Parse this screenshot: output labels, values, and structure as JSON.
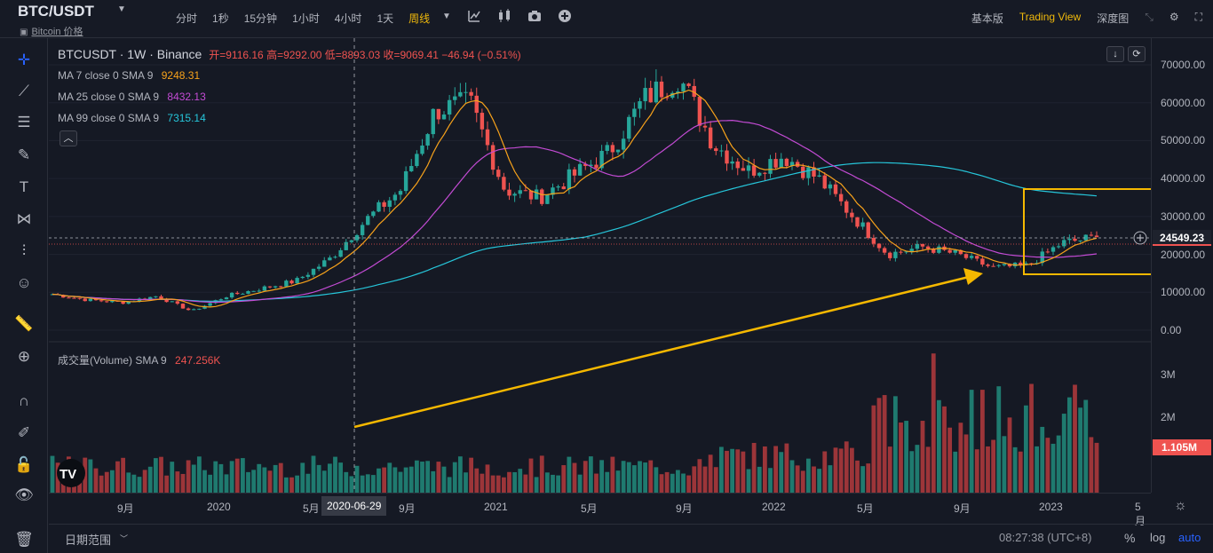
{
  "header": {
    "pair": "BTC/USDT",
    "sub_link": "Bitcoin 价格",
    "intervals": [
      "分时",
      "1秒",
      "15分钟",
      "1小时",
      "4小时",
      "1天",
      "周线"
    ],
    "active_interval": "周线",
    "views": [
      "基本版",
      "Trading View",
      "深度图"
    ],
    "active_view": "Trading View"
  },
  "legend": {
    "symbol": "BTCUSDT · 1W · Binance",
    "ohlc": "开=9116.16  高=9292.00  低=8893.03  收=9069.41  −46.94 (−0.51%)",
    "ma7_label": "MA 7 close 0 SMA 9",
    "ma7_value": "9248.31",
    "ma25_label": "MA 25 close 0 SMA 9",
    "ma25_value": "8432.13",
    "ma99_label": "MA 99 close 0 SMA 9",
    "ma99_value": "7315.14",
    "volume_label": "成交量(Volume) SMA 9",
    "volume_value": "247.256K"
  },
  "price_axis": {
    "ticks": [
      "70000.00",
      "60000.00",
      "50000.00",
      "40000.00",
      "30000.00",
      "20000.00",
      "10000.00",
      "0.00"
    ],
    "current_price": "24549.23",
    "volume_ticks": [
      "3M",
      "2M"
    ],
    "current_volume": "1.105M"
  },
  "time_axis": {
    "labels": [
      "9月",
      "2020",
      "5月",
      "9月",
      "2021",
      "5月",
      "9月",
      "2022",
      "5月",
      "9月",
      "2023",
      "5月"
    ],
    "crosshair_label": "2020-06-29"
  },
  "bottom": {
    "date_range": "日期范围",
    "clock": "08:27:38 (UTC+8)",
    "percent": "%",
    "log": "log",
    "auto": "auto"
  },
  "colors": {
    "up": "#26a69a",
    "down": "#ef5350",
    "ma7": "#f7a21b",
    "ma25": "#c34bd4",
    "ma99": "#26c6da",
    "accent": "#f0b90b"
  },
  "chart_data": {
    "type": "candlestick",
    "title": "",
    "xlabel": "",
    "ylabel": "",
    "ylim": [
      0,
      75000
    ],
    "series": [
      {
        "name": "BTCUSDT 1W",
        "x_range": [
          "2019-07",
          "2023-03"
        ],
        "approx_close_path": [
          9500,
          8000,
          7300,
          9000,
          5000,
          9000,
          11000,
          13000,
          19000,
          29000,
          37000,
          58000,
          60000,
          37000,
          35000,
          41000,
          47000,
          61000,
          67000,
          49000,
          42000,
          46000,
          40000,
          30000,
          20000,
          22000,
          20000,
          16500,
          17000,
          23000,
          24549
        ]
      },
      {
        "name": "MA 7",
        "last": 9248.31
      },
      {
        "name": "MA 25",
        "last": 8432.13
      },
      {
        "name": "MA 99",
        "last": 7315.14
      }
    ]
  }
}
